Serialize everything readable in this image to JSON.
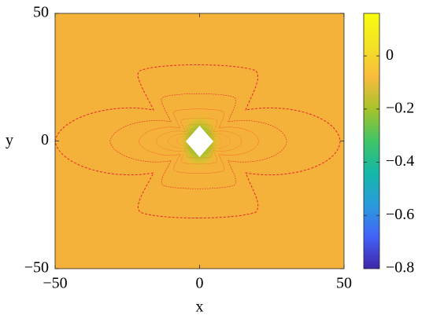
{
  "chart_data": {
    "type": "contour",
    "x_label": "x",
    "y_label": "y",
    "xlim": [
      -50,
      50
    ],
    "ylim": [
      -50,
      50
    ],
    "xticks": [
      {
        "value": -50,
        "label": "−50"
      },
      0,
      50
    ],
    "yticks": [
      {
        "value": -50,
        "label": "−50"
      },
      0,
      50
    ],
    "field_color": "#f5b23a",
    "contour_color": "#e8232a",
    "colormap": [
      "#3e26a8",
      "#4362f8",
      "#2a9bdc",
      "#14b7a8",
      "#3fc566",
      "#a6c32b",
      "#f8ba3d",
      "#f5e326",
      "#f9fb0e"
    ],
    "clim": [
      -0.8,
      0.16
    ],
    "cticks": [
      {
        "value": -0.8,
        "label": "−0.8"
      },
      {
        "value": -0.6,
        "label": "−0.6"
      },
      {
        "value": -0.4,
        "label": "−0.4"
      },
      {
        "value": -0.2,
        "label": "−0.2"
      },
      0
    ]
  }
}
